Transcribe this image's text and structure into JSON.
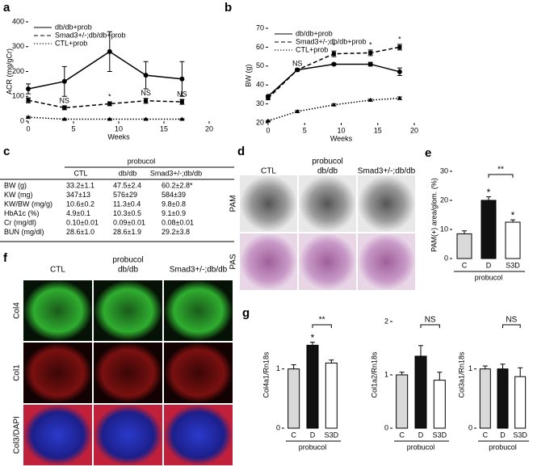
{
  "chart_data": [
    {
      "type": "line",
      "panel": "a",
      "ylabel": "ACR (mg/gCr)",
      "xlabel": "Weeks",
      "x": [
        0,
        4,
        9,
        13,
        17
      ],
      "xlim": [
        0,
        20
      ],
      "xticks": [
        0,
        5,
        10,
        15,
        20
      ],
      "ylim": [
        0,
        400
      ],
      "yticks": [
        0,
        100,
        200,
        300,
        400
      ],
      "series": [
        {
          "name": "db/db+prob",
          "color": "#000000",
          "dash": "solid",
          "marker": "circle",
          "values": [
            130,
            160,
            280,
            185,
            170
          ],
          "errors": [
            20,
            60,
            80,
            55,
            70
          ]
        },
        {
          "name": "Smad3+/-;db/db+prob",
          "color": "#000000",
          "dash": "dashed",
          "marker": "square",
          "values": [
            84,
            54,
            70,
            82,
            78
          ],
          "errors": [
            10,
            8,
            8,
            10,
            10
          ],
          "point_labels": [
            null,
            "NS",
            "*",
            "NS",
            "NS"
          ]
        },
        {
          "name": "CTL+prob",
          "color": "#000000",
          "dash": "dotted",
          "marker": "triangle",
          "values": [
            16,
            8,
            8,
            8,
            8
          ],
          "errors": [
            3,
            2,
            2,
            2,
            2
          ]
        }
      ]
    },
    {
      "type": "line",
      "panel": "b",
      "ylabel": "BW (g)",
      "xlabel": "Weeks",
      "x": [
        0,
        4,
        9,
        14,
        18
      ],
      "xlim": [
        0,
        20
      ],
      "xticks": [
        0,
        5,
        10,
        15,
        20
      ],
      "ylim": [
        20,
        70
      ],
      "yticks": [
        20,
        30,
        40,
        50,
        60,
        70
      ],
      "series": [
        {
          "name": "db/db+prob",
          "color": "#000000",
          "dash": "solid",
          "marker": "circle",
          "values": [
            34,
            48,
            51,
            51,
            47
          ],
          "errors": [
            0.5,
            0.5,
            0.5,
            1,
            2
          ]
        },
        {
          "name": "Smad3+/-;db/db+prob",
          "color": "#000000",
          "dash": "dashed",
          "marker": "square",
          "values": [
            33,
            48,
            56.5,
            57,
            60
          ],
          "errors": [
            0.5,
            0.5,
            1.5,
            1.5,
            1.5
          ],
          "point_labels": [
            null,
            "NS",
            "*",
            "*",
            "*"
          ]
        },
        {
          "name": "CTL+prob",
          "color": "#000000",
          "dash": "dotted",
          "marker": "triangle",
          "values": [
            21,
            26,
            29.5,
            32,
            33
          ],
          "errors": [
            0.3,
            0.5,
            0.5,
            0.5,
            0.7
          ]
        }
      ]
    },
    {
      "type": "bar",
      "panel": "e",
      "ylabel": "PAM(+) area/glom. (%)",
      "categories": [
        "C",
        "D",
        "S3D"
      ],
      "values": [
        8.5,
        20,
        12.5
      ],
      "errors": [
        1,
        1.2,
        0.8
      ],
      "colors": [
        "#d9d9d9",
        "#111111",
        "#ffffff"
      ],
      "ylim": [
        0,
        30
      ],
      "yticks": [
        0,
        10,
        20,
        30
      ],
      "marks": [
        null,
        "*",
        "*"
      ],
      "comparison": {
        "from": "D",
        "to": "S3D",
        "label": "**"
      },
      "group_label": "probucol"
    },
    {
      "type": "bar",
      "panel": "g",
      "ylabel": "Col4a1/Rn18s",
      "categories": [
        "C",
        "D",
        "S3D"
      ],
      "values": [
        1,
        1.4,
        1.1
      ],
      "errors": [
        0.07,
        0.05,
        0.05
      ],
      "colors": [
        "#d9d9d9",
        "#111111",
        "#ffffff"
      ],
      "ylim": [
        0,
        1.8
      ],
      "yticks": [
        0,
        1
      ],
      "marks": [
        null,
        "*",
        null
      ],
      "comparison": {
        "from": "D",
        "to": "S3D",
        "label": "**"
      },
      "group_label": "probucol"
    },
    {
      "type": "bar",
      "ylabel": "Col1a2/Rn18s",
      "categories": [
        "C",
        "D",
        "S3D"
      ],
      "values": [
        1,
        1.35,
        0.9
      ],
      "errors": [
        0.05,
        0.2,
        0.15
      ],
      "colors": [
        "#d9d9d9",
        "#111111",
        "#ffffff"
      ],
      "ylim": [
        0,
        2
      ],
      "yticks": [
        0,
        1,
        2
      ],
      "comparison": {
        "from": "D",
        "to": "S3D",
        "label": "NS"
      },
      "group_label": "probucol"
    },
    {
      "type": "bar",
      "ylabel": "Col3a1/Rn18s",
      "categories": [
        "C",
        "D",
        "S3D"
      ],
      "values": [
        1,
        1,
        0.87
      ],
      "errors": [
        0.05,
        0.08,
        0.15
      ],
      "colors": [
        "#d9d9d9",
        "#111111",
        "#ffffff"
      ],
      "ylim": [
        0,
        1.8
      ],
      "yticks": [
        0,
        1
      ],
      "comparison": {
        "from": "D",
        "to": "S3D",
        "label": "NS"
      },
      "group_label": "probucol"
    }
  ],
  "table_c": {
    "panel": "c",
    "title": "probucol",
    "columns": [
      "CTL",
      "db/db",
      "Smad3+/-;db/db"
    ],
    "rows": [
      [
        "BW (g)",
        "33.2±1.1",
        "47.5±2.4",
        "60.2±2.8*"
      ],
      [
        "KW (mg)",
        "347±13",
        "576±29",
        "584±39"
      ],
      [
        "KW/BW (mg/g)",
        "10.6±0.2",
        "11.3±0.4",
        "9.8±0.8"
      ],
      [
        "HbA1c (%)",
        "4.9±0.1",
        "10.3±0.5",
        "9.1±0.9"
      ],
      [
        "Cr (mg/dl)",
        "0.10±0.01",
        "0.09±0.01",
        "0.08±0.01"
      ],
      [
        "BUN (mg/dl)",
        "28.6±1.0",
        "28.6±1.9",
        "29.2±3.8"
      ]
    ]
  },
  "images_d": {
    "panel": "d",
    "title": "probucol",
    "columns": [
      "CTL",
      "db/db",
      "Smad3+/-;db/db"
    ],
    "rows": [
      "PAM",
      "PAS"
    ]
  },
  "images_f": {
    "panel": "f",
    "title": "probucol",
    "columns": [
      "CTL",
      "db/db",
      "Smad3+/-;db/db"
    ],
    "rows": [
      "Col4",
      "Col1",
      "Col3/DAPI"
    ]
  }
}
